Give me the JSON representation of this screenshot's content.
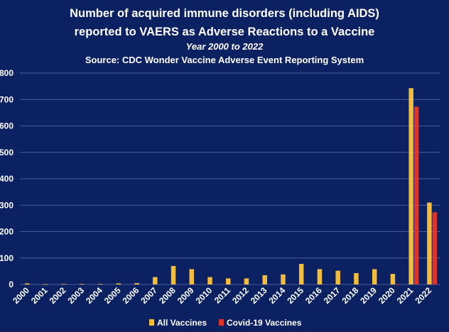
{
  "colors": {
    "background": "#0c2162",
    "all_vaccines": "#f2bd3a",
    "covid_vaccines": "#e0332a",
    "gridline": "#4a5c99",
    "text": "#ffffff"
  },
  "chart_data": {
    "type": "bar",
    "title_line1": "Number of acquired immune disorders (including AIDS)",
    "title_line2": "reported to VAERS as Adverse Reactions to a Vaccine",
    "subtitle": "Year 2000 to 2022",
    "source": "Source: CDC Wonder Vaccine Adverse Event Reporting System",
    "xlabel": "",
    "ylabel": "",
    "ylim": [
      0,
      800
    ],
    "yticks": [
      0,
      100,
      200,
      300,
      400,
      500,
      600,
      700,
      800
    ],
    "ytick_labels": [
      "0",
      "100",
      "200",
      "300",
      "400",
      "500",
      "600",
      "700",
      "800"
    ],
    "grid": true,
    "legend_position": "bottom",
    "categories": [
      "2000",
      "2001",
      "2002",
      "2003",
      "2004",
      "2005",
      "2006",
      "2007",
      "2008",
      "2009",
      "2010",
      "2011",
      "2012",
      "2013",
      "2014",
      "2015",
      "2016",
      "2017",
      "2018",
      "2019",
      "2020",
      "2021",
      "2022"
    ],
    "series": [
      {
        "name": "All Vaccines",
        "color": "#f2bd3a",
        "values": [
          4,
          1,
          2,
          2,
          2,
          4,
          5,
          28,
          70,
          58,
          28,
          23,
          23,
          35,
          38,
          78,
          58,
          52,
          43,
          58,
          40,
          743,
          310
        ]
      },
      {
        "name": "Covid-19 Vaccines",
        "color": "#e0332a",
        "values": [
          0,
          0,
          0,
          0,
          0,
          0,
          0,
          0,
          0,
          0,
          0,
          0,
          0,
          0,
          0,
          0,
          0,
          0,
          0,
          0,
          1,
          673,
          273
        ]
      }
    ]
  }
}
